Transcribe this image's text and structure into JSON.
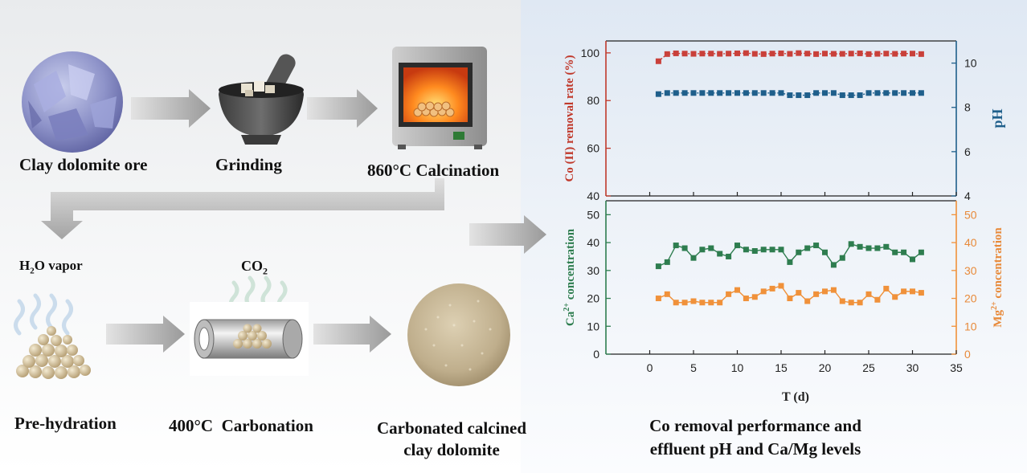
{
  "steps": {
    "ore": "Clay dolomite ore",
    "grinding": "Grinding",
    "calcination": "860°C Calcination",
    "vapor_prefix": "H",
    "vapor_sub": "2",
    "vapor_suffix": "O vapor",
    "co2_prefix": "CO",
    "co2_sub": "2",
    "prehydration": "Pre-hydration",
    "carbonation": "400°C  Carbonation",
    "product_line1": "Carbonated calcined",
    "product_line2": "clay dolomite"
  },
  "result_caption": {
    "line1": "Co removal performance and",
    "line2": "effluent pH and Ca/Mg levels"
  },
  "chart_data": [
    {
      "type": "scatter",
      "xlabel": "T (d)",
      "xlim": [
        -5,
        35
      ],
      "xticks": [
        0,
        5,
        10,
        15,
        20,
        25,
        30,
        35
      ],
      "left_axis": {
        "label": "Co (II) removal rate (%)",
        "ylim": [
          40,
          105
        ],
        "ticks": [
          40,
          60,
          80,
          100
        ],
        "color": "#c0392b"
      },
      "right_axis": {
        "label": "pH",
        "ylim": [
          4,
          11
        ],
        "ticks": [
          4,
          6,
          8,
          10
        ],
        "color": "#1f5f8b"
      },
      "series": [
        {
          "axis": "left",
          "color": "#c9403a",
          "x": [
            1,
            2,
            3,
            4,
            5,
            6,
            7,
            8,
            9,
            10,
            11,
            12,
            13,
            14,
            15,
            16,
            17,
            18,
            19,
            20,
            21,
            22,
            23,
            24,
            25,
            26,
            27,
            28,
            29,
            30,
            31
          ],
          "values": [
            96.5,
            99.5,
            99.8,
            99.7,
            99.6,
            99.7,
            99.7,
            99.6,
            99.7,
            99.8,
            99.9,
            99.6,
            99.5,
            99.7,
            99.8,
            99.6,
            99.9,
            99.7,
            99.5,
            99.7,
            99.6,
            99.6,
            99.7,
            99.8,
            99.5,
            99.6,
            99.7,
            99.6,
            99.7,
            99.7,
            99.5
          ]
        },
        {
          "axis": "right",
          "color": "#1f5f8b",
          "x": [
            1,
            2,
            3,
            4,
            5,
            6,
            7,
            8,
            9,
            10,
            11,
            12,
            13,
            14,
            15,
            16,
            17,
            18,
            19,
            20,
            21,
            22,
            23,
            24,
            25,
            26,
            27,
            28,
            29,
            30,
            31
          ],
          "values": [
            8.6,
            8.65,
            8.65,
            8.65,
            8.65,
            8.65,
            8.65,
            8.65,
            8.65,
            8.65,
            8.65,
            8.65,
            8.65,
            8.65,
            8.65,
            8.55,
            8.55,
            8.55,
            8.65,
            8.65,
            8.65,
            8.55,
            8.55,
            8.55,
            8.65,
            8.65,
            8.65,
            8.65,
            8.65,
            8.65,
            8.65
          ]
        }
      ]
    },
    {
      "type": "line",
      "xlabel": "T (d)",
      "xlim": [
        -5,
        35
      ],
      "xticks": [
        0,
        5,
        10,
        15,
        20,
        25,
        30,
        35
      ],
      "left_axis": {
        "label_prefix": "Ca",
        "label_sup": "2+",
        "label_suffix": " concentration",
        "ylim": [
          0,
          55
        ],
        "ticks": [
          0,
          10,
          20,
          30,
          40,
          50
        ],
        "color": "#2e7d4f"
      },
      "right_axis": {
        "label_prefix": "Mg",
        "label_sup": "2+",
        "label_suffix": " concentration",
        "ylim": [
          0,
          55
        ],
        "ticks": [
          0,
          10,
          20,
          30,
          40,
          50
        ],
        "color": "#f0913a"
      },
      "series": [
        {
          "axis": "left",
          "color": "#2e7d4f",
          "x": [
            1,
            2,
            3,
            4,
            5,
            6,
            7,
            8,
            9,
            10,
            11,
            12,
            13,
            14,
            15,
            16,
            17,
            18,
            19,
            20,
            21,
            22,
            23,
            24,
            25,
            26,
            27,
            28,
            29,
            30,
            31
          ],
          "values": [
            31.5,
            33,
            39,
            38,
            34.5,
            37.5,
            38,
            36,
            35,
            39,
            37.5,
            37,
            37.5,
            37.5,
            37.5,
            33,
            36.5,
            38,
            39,
            36.5,
            32,
            34.5,
            39.5,
            38.5,
            38,
            38,
            38.5,
            36.5,
            36.5,
            34,
            36.5
          ]
        },
        {
          "axis": "right",
          "color": "#f0913a",
          "x": [
            1,
            2,
            3,
            4,
            5,
            6,
            7,
            8,
            9,
            10,
            11,
            12,
            13,
            14,
            15,
            16,
            17,
            18,
            19,
            20,
            21,
            22,
            23,
            24,
            25,
            26,
            27,
            28,
            29,
            30,
            31
          ],
          "values": [
            20,
            21.5,
            18.5,
            18.5,
            19,
            18.5,
            18.5,
            18.5,
            21.5,
            23,
            20,
            20.5,
            22.5,
            23.5,
            24.5,
            20,
            22,
            19,
            21.5,
            22.5,
            23,
            19,
            18.5,
            18.5,
            21.5,
            19.5,
            23.5,
            20.5,
            22.5,
            22.5,
            22
          ]
        }
      ]
    }
  ]
}
